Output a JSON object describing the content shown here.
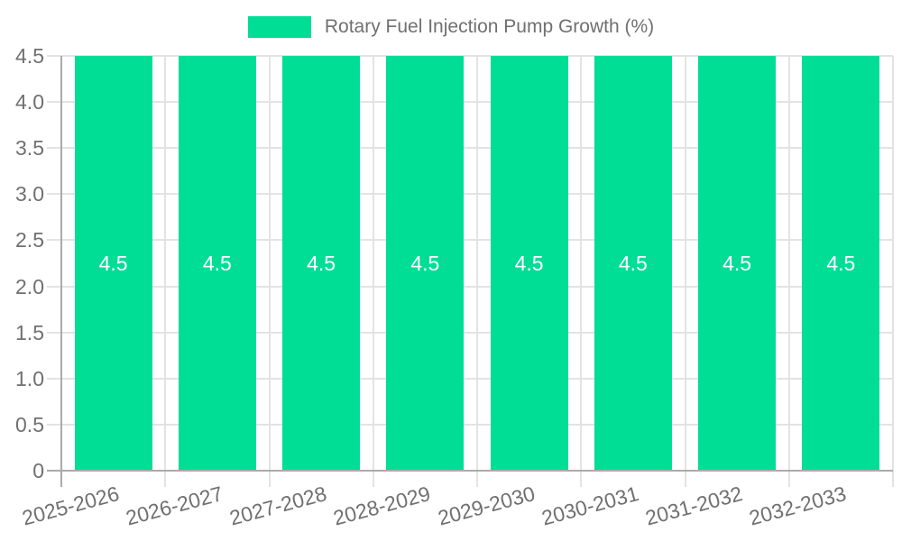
{
  "legend": {
    "position": "top",
    "label": "Rotary Fuel Injection Pump Growth (%)"
  },
  "chart_data": {
    "type": "bar",
    "title": "Rotary Fuel Injection Pump Growth (%)",
    "categories": [
      "2025-2026",
      "2026-2027",
      "2027-2028",
      "2028-2029",
      "2029-2030",
      "2030-2031",
      "2031-2032",
      "2032-2033"
    ],
    "values": [
      4.5,
      4.5,
      4.5,
      4.5,
      4.5,
      4.5,
      4.5,
      4.5
    ],
    "value_labels": [
      "4.5",
      "4.5",
      "4.5",
      "4.5",
      "4.5",
      "4.5",
      "4.5",
      "4.5"
    ],
    "xlabel": "",
    "ylabel": "",
    "ylim": [
      0,
      4.5
    ],
    "ytick_values": [
      0,
      0.5,
      1.0,
      1.5,
      2.0,
      2.5,
      3.0,
      3.5,
      4.0,
      4.5
    ],
    "ytick_labels": [
      "0",
      "0.5",
      "1.0",
      "1.5",
      "2.0",
      "2.5",
      "3.0",
      "3.5",
      "4.0",
      "4.5"
    ],
    "grid": true,
    "legend_position": "top",
    "colors": {
      "bar": "#00DE96",
      "text": "#707070",
      "grid": "#E3E3E3",
      "axis": "#ABABAB",
      "value_label": "#FFFFFF",
      "background": "#FFFFFF"
    }
  }
}
